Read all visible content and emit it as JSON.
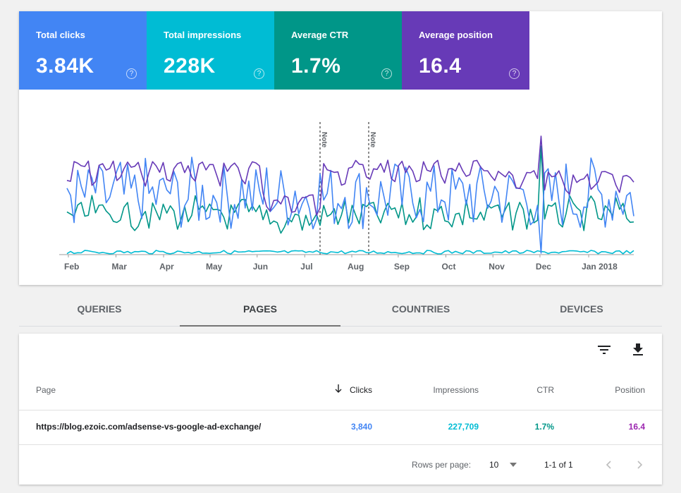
{
  "metrics": [
    {
      "label": "Total clicks",
      "value": "3.84K",
      "color": "#4285f4"
    },
    {
      "label": "Total impressions",
      "value": "228K",
      "color": "#00bcd4"
    },
    {
      "label": "Average CTR",
      "value": "1.7%",
      "color": "#009688"
    },
    {
      "label": "Average position",
      "value": "16.4",
      "color": "#673ab7"
    }
  ],
  "help_glyph": "?",
  "chart_data": {
    "type": "line",
    "x_ticks": [
      "Feb",
      "Mar",
      "Apr",
      "May",
      "Jun",
      "Jul",
      "Aug",
      "Sep",
      "Oct",
      "Nov",
      "Dec",
      "Jan 2018"
    ],
    "annotations": [
      "Note",
      "Note"
    ],
    "series": [
      {
        "color": "#4285f4",
        "description": "clicks"
      },
      {
        "color": "#00bcd4",
        "description": "impressions"
      },
      {
        "color": "#009688",
        "description": "ctr"
      },
      {
        "color": "#673ab7",
        "description": "position"
      }
    ]
  },
  "tabs": [
    {
      "label": "QUERIES",
      "active": false
    },
    {
      "label": "PAGES",
      "active": true
    },
    {
      "label": "COUNTRIES",
      "active": false
    },
    {
      "label": "DEVICES",
      "active": false
    }
  ],
  "table": {
    "headers": {
      "page": "Page",
      "clicks": "Clicks",
      "impressions": "Impressions",
      "ctr": "CTR",
      "position": "Position"
    },
    "sort_icon": "arrow-down-icon",
    "rows": [
      {
        "page": "https://blog.ezoic.com/adsense-vs-google-ad-exchange/",
        "clicks": "3,840",
        "impressions": "227,709",
        "ctr": "1.7%",
        "position": "16.4"
      }
    ],
    "value_colors": {
      "clicks": "#4285f4",
      "impressions": "#00bcd4",
      "ctr": "#009688",
      "position": "#9c27b0"
    }
  },
  "footer": {
    "rows_label": "Rows per page:",
    "rows_value": "10",
    "range": "1-1 of 1"
  },
  "toolbar_icons": [
    "filter-icon",
    "download-icon"
  ]
}
